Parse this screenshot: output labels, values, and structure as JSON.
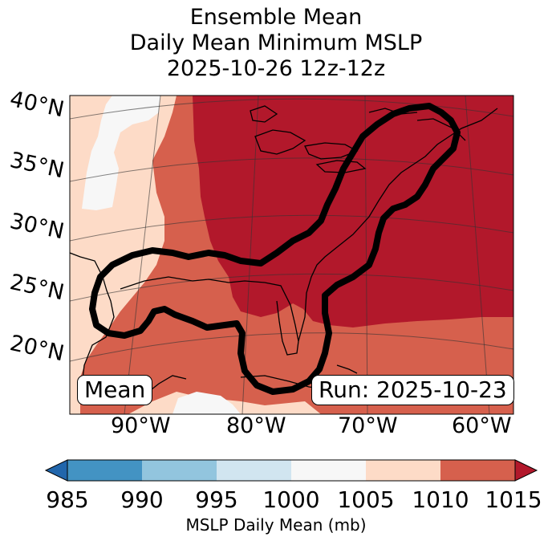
{
  "title": {
    "line1": "Ensemble Mean",
    "line2": "Daily Mean Minimum MSLP",
    "line3": "2025-10-26 12z-12z"
  },
  "map": {
    "latitude_labels": [
      "40°N",
      "35°N",
      "30°N",
      "25°N",
      "20°N"
    ],
    "longitude_labels": [
      "90°W",
      "80°W",
      "70°W",
      "60°W"
    ],
    "mean_label": "Mean",
    "run_label": "Run: 2025-10-23"
  },
  "colorbar": {
    "ticks": [
      "985",
      "990",
      "995",
      "1000",
      "1005",
      "1010",
      "1015"
    ],
    "label": "MSLP Daily Mean (mb)",
    "colors": [
      "#2166ac",
      "#4393c3",
      "#92c5de",
      "#d1e5f0",
      "#f7f7f7",
      "#fddbc7",
      "#d6604d",
      "#b2182b"
    ]
  },
  "field_colors": {
    "1000_1005": "#f7f7f7",
    "1005_1010": "#fddbc7",
    "1010_1015": "#d6604d",
    "above_1015": "#b2182b"
  }
}
